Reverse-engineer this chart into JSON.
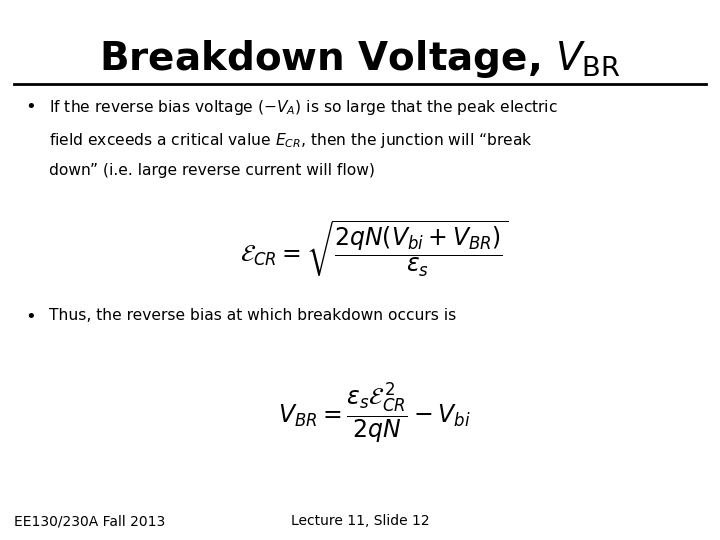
{
  "title_plain": "Breakdown Voltage, ",
  "title_sub": "BR",
  "title_fontsize": 28,
  "title_fontweight": "bold",
  "background_color": "#ffffff",
  "text_color": "#000000",
  "bullet2": "Thus, the reverse bias at which breakdown occurs is",
  "footer_left": "EE130/230A Fall 2013",
  "footer_right": "Lecture 11, Slide 12",
  "footer_fontsize": 10
}
